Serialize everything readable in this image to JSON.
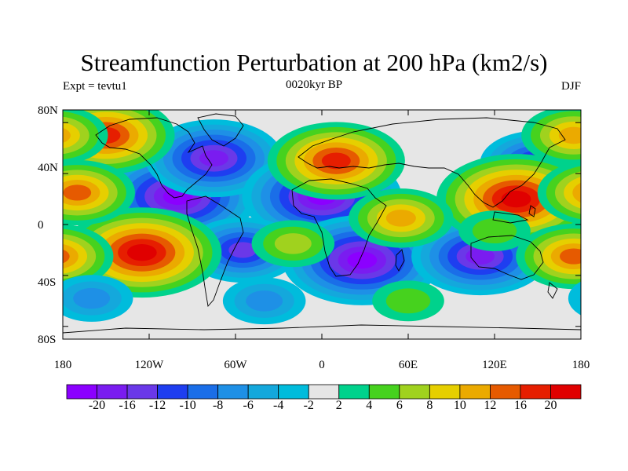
{
  "title": "Streamfunction Perturbation at 200 hPa (km2/s)",
  "left_label": "Expt = tevtu1",
  "center_label": "0020kyr BP",
  "right_label": "DJF",
  "axes": {
    "lat_labels": [
      "80N",
      "40N",
      "0",
      "40S",
      "80S"
    ],
    "lon_labels": [
      "180",
      "120W",
      "60W",
      "0",
      "60E",
      "120E",
      "180"
    ]
  },
  "colorbar": {
    "labels": [
      "-20",
      "-16",
      "-12",
      "-10",
      "-8",
      "-6",
      "-4",
      "-2",
      "2",
      "4",
      "6",
      "8",
      "10",
      "12",
      "16",
      "20"
    ],
    "colors": [
      "#8b00ff",
      "#7a1cf0",
      "#6a38e8",
      "#1e3ef0",
      "#1a6ee8",
      "#1e90e6",
      "#14a8dc",
      "#00bcdc",
      "#e6e6e6",
      "#00d28c",
      "#46d21e",
      "#a0d21e",
      "#e6cf00",
      "#ebaa00",
      "#e65a00",
      "#e61e00",
      "#e00000"
    ]
  },
  "chart_data": {
    "type": "heatmap",
    "title": "Streamfunction Perturbation at 200 hPa (km2/s)",
    "units": "km2/s",
    "level": "200 hPa",
    "season": "DJF",
    "period": "0020kyr BP",
    "experiment": "tevtu1",
    "lon_range": [
      -180,
      180
    ],
    "lat_range": [
      -90,
      90
    ],
    "contour_levels": [
      -20,
      -16,
      -12,
      -10,
      -8,
      -6,
      -4,
      -2,
      2,
      4,
      6,
      8,
      10,
      12,
      16,
      20
    ],
    "features": [
      {
        "lon": -100,
        "lat": 22,
        "value": -20
      },
      {
        "lon": -75,
        "lat": 52,
        "value": -16
      },
      {
        "lon": 0,
        "lat": 22,
        "value": -20
      },
      {
        "lon": -55,
        "lat": -20,
        "value": -12
      },
      {
        "lon": 28,
        "lat": -28,
        "value": -20
      },
      {
        "lon": 110,
        "lat": -25,
        "value": -16
      },
      {
        "lon": 150,
        "lat": 48,
        "value": -12
      },
      {
        "lon": 135,
        "lat": 20,
        "value": 20
      },
      {
        "lon": -125,
        "lat": -22,
        "value": 20
      },
      {
        "lon": 10,
        "lat": 50,
        "value": 16
      },
      {
        "lon": -150,
        "lat": 70,
        "value": 16
      },
      {
        "lon": 175,
        "lat": 70,
        "value": 10
      },
      {
        "lon": 55,
        "lat": 5,
        "value": 10
      },
      {
        "lon": -20,
        "lat": -15,
        "value": 6
      },
      {
        "lon": 120,
        "lat": -5,
        "value": 4
      },
      {
        "lon": 60,
        "lat": -60,
        "value": 4
      },
      {
        "lon": -170,
        "lat": 25,
        "value": 12
      },
      {
        "lon": 175,
        "lat": -25,
        "value": 12
      },
      {
        "lon": -160,
        "lat": -58,
        "value": -6
      },
      {
        "lon": -40,
        "lat": -60,
        "value": -6
      }
    ]
  }
}
